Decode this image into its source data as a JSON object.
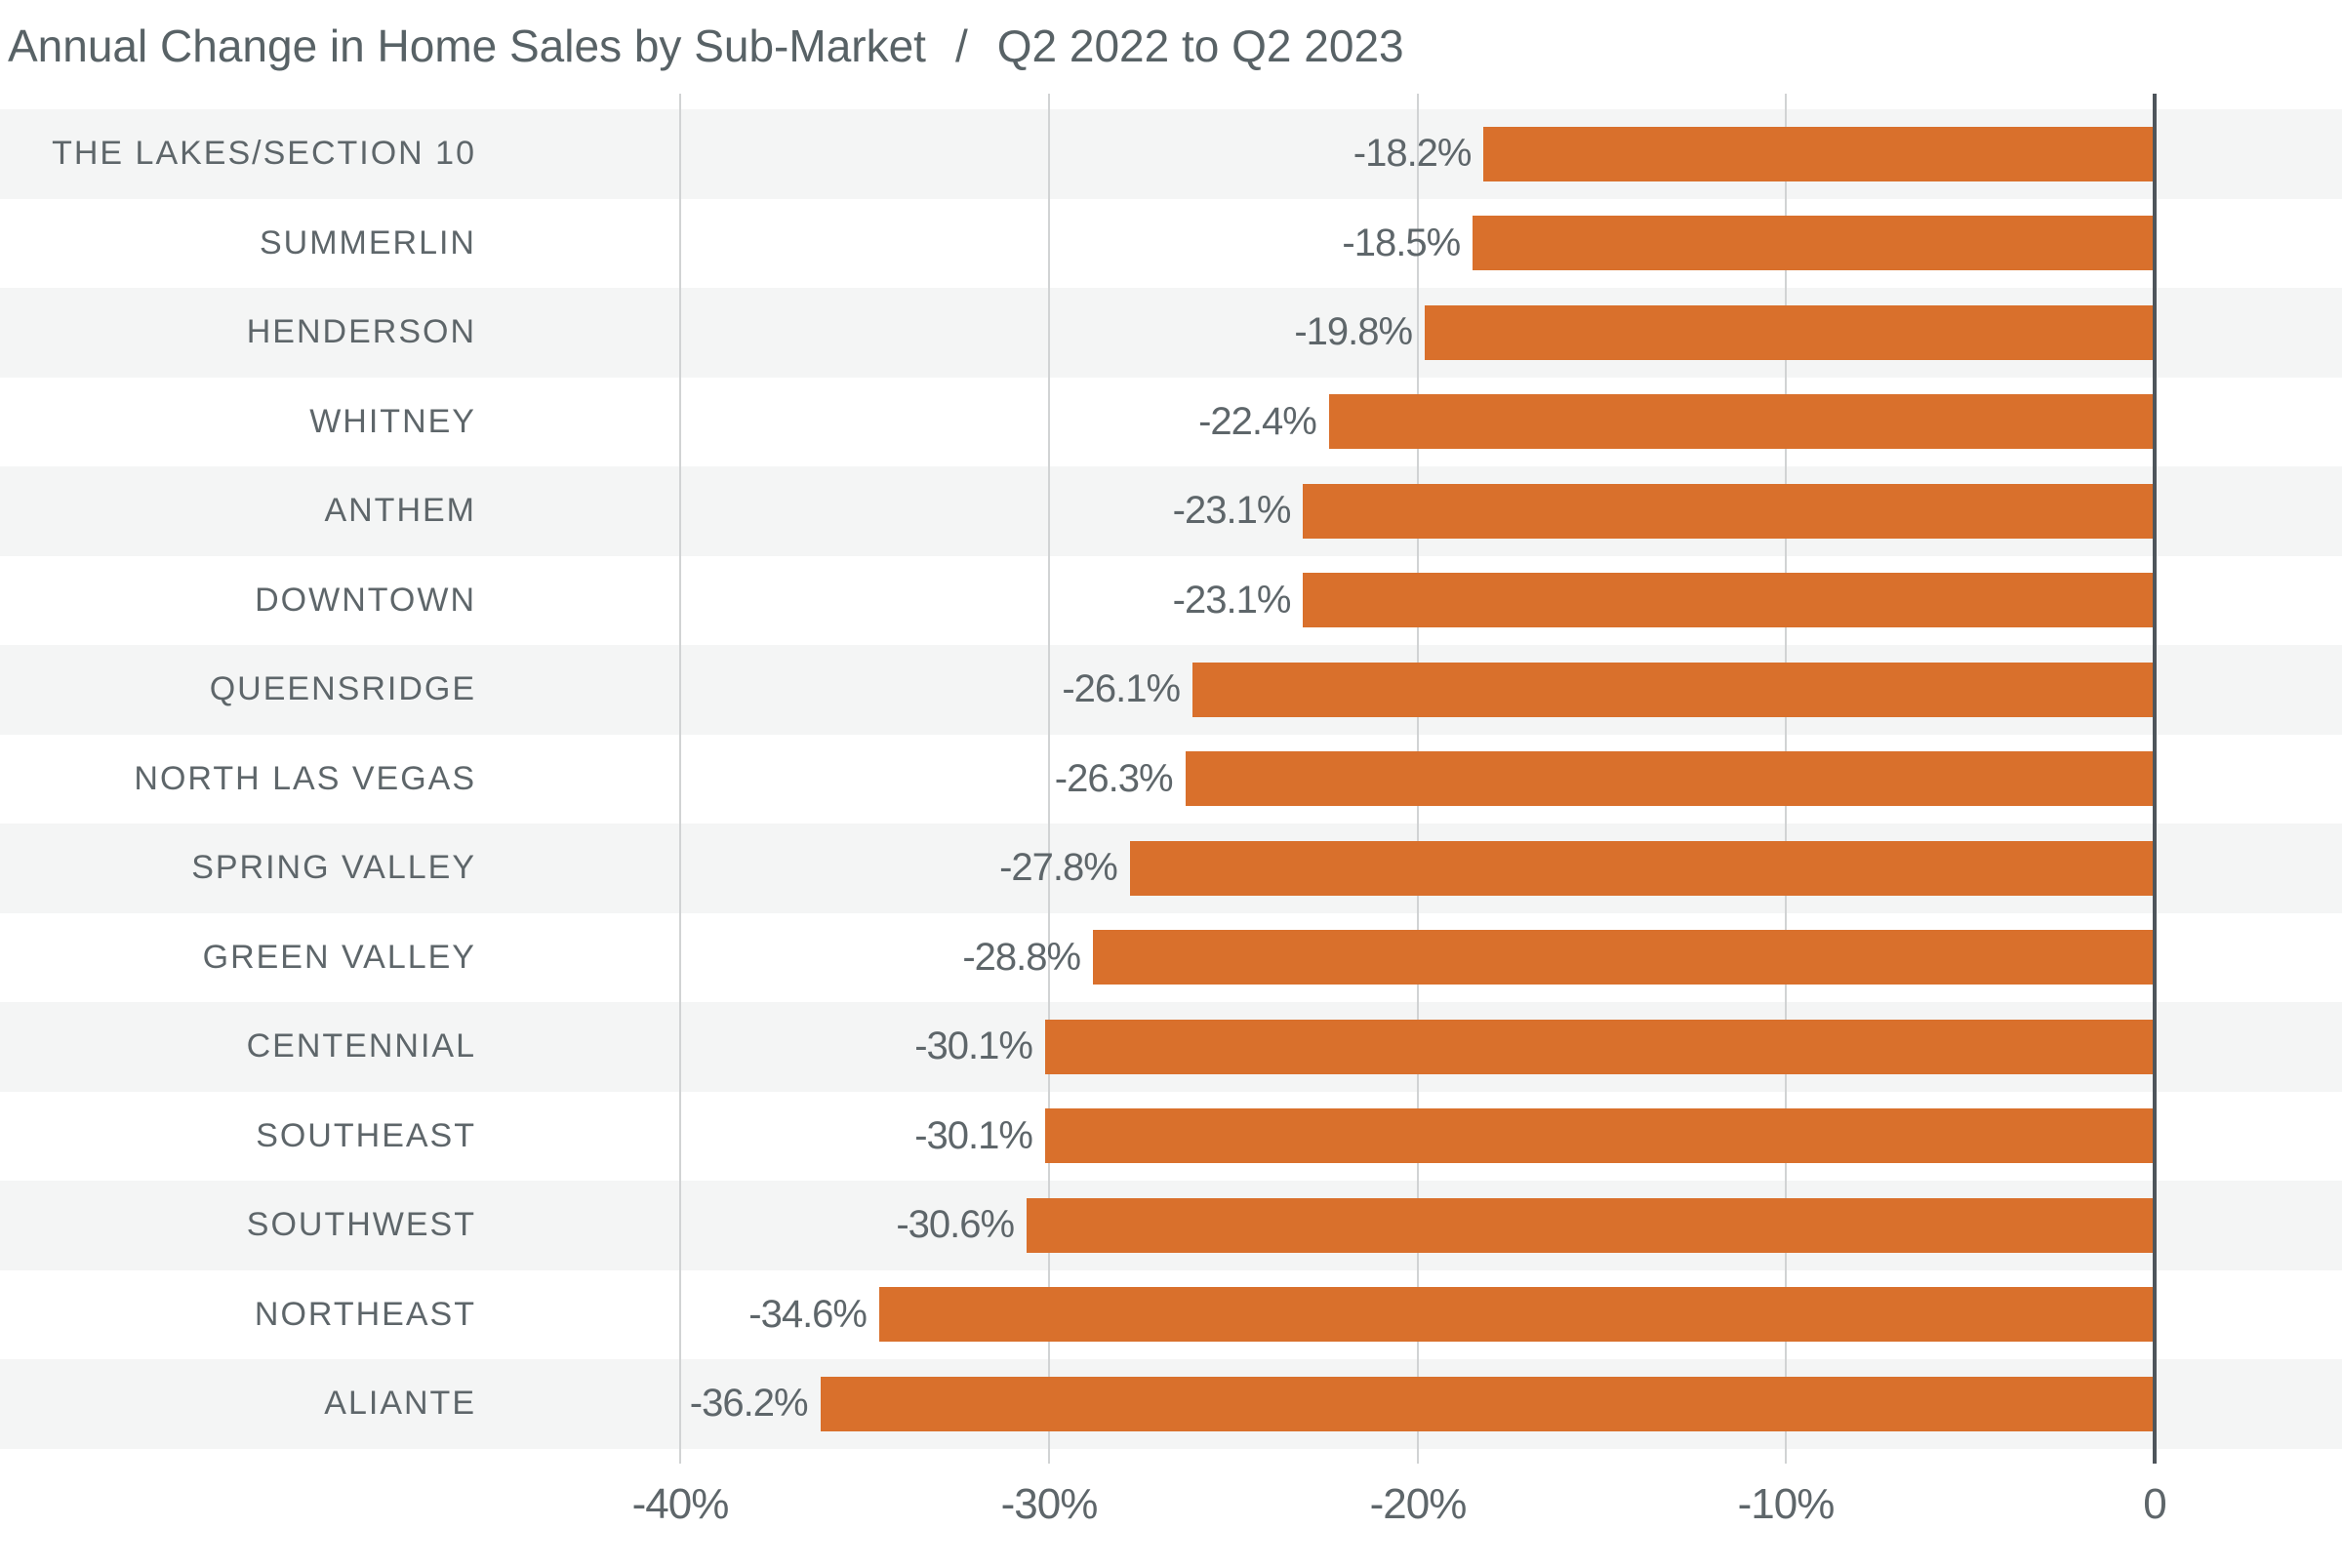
{
  "title": {
    "main": "Annual Change in Home Sales by Sub-Market",
    "separator": "/",
    "period": "Q2 2022 to Q2 2023"
  },
  "chart_data": {
    "type": "bar",
    "orientation": "horizontal",
    "title": "Annual Change in Home Sales by Sub-Market / Q2 2022 to Q2 2023",
    "xlabel": "",
    "ylabel": "",
    "categories": [
      "THE LAKES/SECTION 10",
      "SUMMERLIN",
      "HENDERSON",
      "WHITNEY",
      "ANTHEM",
      "DOWNTOWN",
      "QUEENSRIDGE",
      "NORTH LAS VEGAS",
      "SPRING VALLEY",
      "GREEN VALLEY",
      "CENTENNIAL",
      "SOUTHEAST",
      "SOUTHWEST",
      "NORTHEAST",
      "ALIANTE"
    ],
    "values": [
      -18.2,
      -18.5,
      -19.8,
      -22.4,
      -23.1,
      -23.1,
      -26.1,
      -26.3,
      -27.8,
      -28.8,
      -30.1,
      -30.1,
      -30.6,
      -34.6,
      -36.2
    ],
    "value_labels": [
      "-18.2%",
      "-18.5%",
      "-19.8%",
      "-22.4%",
      "-23.1%",
      "-23.1%",
      "-26.1%",
      "-26.3%",
      "-27.8%",
      "-28.8%",
      "-30.1%",
      "-30.1%",
      "-30.6%",
      "-34.6%",
      "-36.2%"
    ],
    "x_ticks": [
      -40,
      -30,
      -20,
      -10,
      0
    ],
    "x_tick_labels": [
      "-40%",
      "-30%",
      "-20%",
      "-10%",
      "0"
    ],
    "xlim": [
      -40,
      0
    ],
    "grid": "vertical-gridlines-on",
    "legend": "none",
    "units": "percent"
  },
  "colors": {
    "bar": "#d9702c",
    "row_alt": "#f4f5f5",
    "row_base": "#ffffff",
    "grid": "#d1d3d4",
    "axis": "#4e555b",
    "text": "#5e666a",
    "title": "#586266"
  }
}
